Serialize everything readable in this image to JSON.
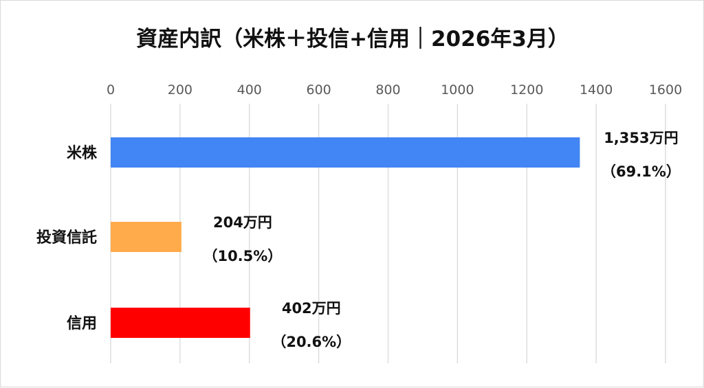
{
  "chart_data": {
    "type": "bar",
    "orientation": "horizontal",
    "title": "資産内訳（米株＋投信+信用｜2026年3月）",
    "categories": [
      "米株",
      "投資信託",
      "信用"
    ],
    "values": [
      1353,
      204,
      402
    ],
    "colors": [
      "#4285f4",
      "#ffab4c",
      "#ff0000"
    ],
    "value_labels": [
      "1,353万円",
      "204万円",
      "402万円"
    ],
    "percent_labels": [
      "（69.1%）",
      "（10.5%）",
      "（20.6%）"
    ],
    "xlim": [
      0,
      1600
    ],
    "xticks": [
      "0",
      "200",
      "400",
      "600",
      "800",
      "1000",
      "1200",
      "1400",
      "1600"
    ],
    "x_axis_position": "top",
    "grid": true,
    "legend": "none"
  }
}
